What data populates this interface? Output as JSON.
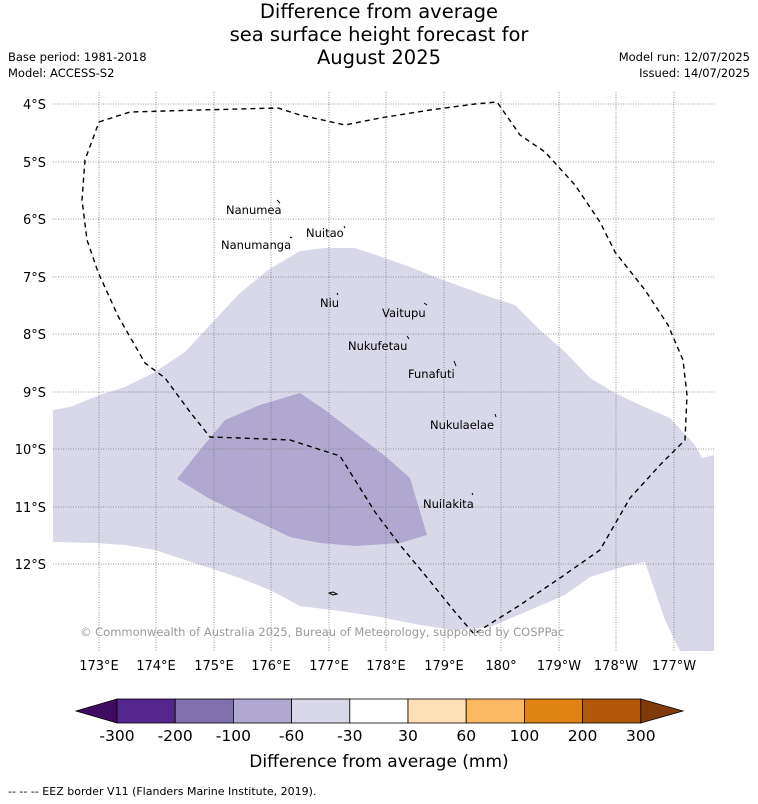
{
  "title": {
    "line1": "Difference from average",
    "line2": "sea surface height forecast for",
    "line3": "August 2025"
  },
  "meta_left": {
    "base_period": "Base period: 1981-2018",
    "model": "Model: ACCESS-S2"
  },
  "meta_right": {
    "model_run": "Model run: 12/07/2025",
    "issued": "Issued: 14/07/2025"
  },
  "map": {
    "lat_labels": [
      "4°S",
      "5°S",
      "6°S",
      "7°S",
      "8°S",
      "9°S",
      "10°S",
      "11°S",
      "12°S"
    ],
    "lon_labels": [
      "173°E",
      "174°E",
      "175°E",
      "176°E",
      "177°E",
      "178°E",
      "179°E",
      "180°",
      "179°W",
      "178°W",
      "177°W"
    ],
    "islands": [
      "Nanumea",
      "Nuitao",
      "Nanumanga",
      "Niu",
      "Vaitupu",
      "Nukufetau",
      "Funafuti",
      "Nukulaelae",
      "Nuilakita"
    ],
    "copyright": "© Commonwealth of Australia 2025, Bureau of Meteorology, supported by COSPPac",
    "colors": {
      "light_purple": "#d8d8e8",
      "medium_purple": "#b0a8d0"
    }
  },
  "colorbar": {
    "ticks": [
      "-300",
      "-200",
      "-100",
      "-60",
      "-30",
      "30",
      "60",
      "100",
      "200",
      "300"
    ],
    "colors": [
      "#3f0b60",
      "#54278f",
      "#7f6fab",
      "#b0a8d0",
      "#d8d8e8",
      "#ffffff",
      "#fee0b6",
      "#fdb863",
      "#e08214",
      "#b35806",
      "#7f3b08"
    ],
    "title": "Difference from average (mm)"
  },
  "legend": {
    "eez": "-- -- -- EEZ border V11 (Flanders Marine Institute, 2019)."
  }
}
